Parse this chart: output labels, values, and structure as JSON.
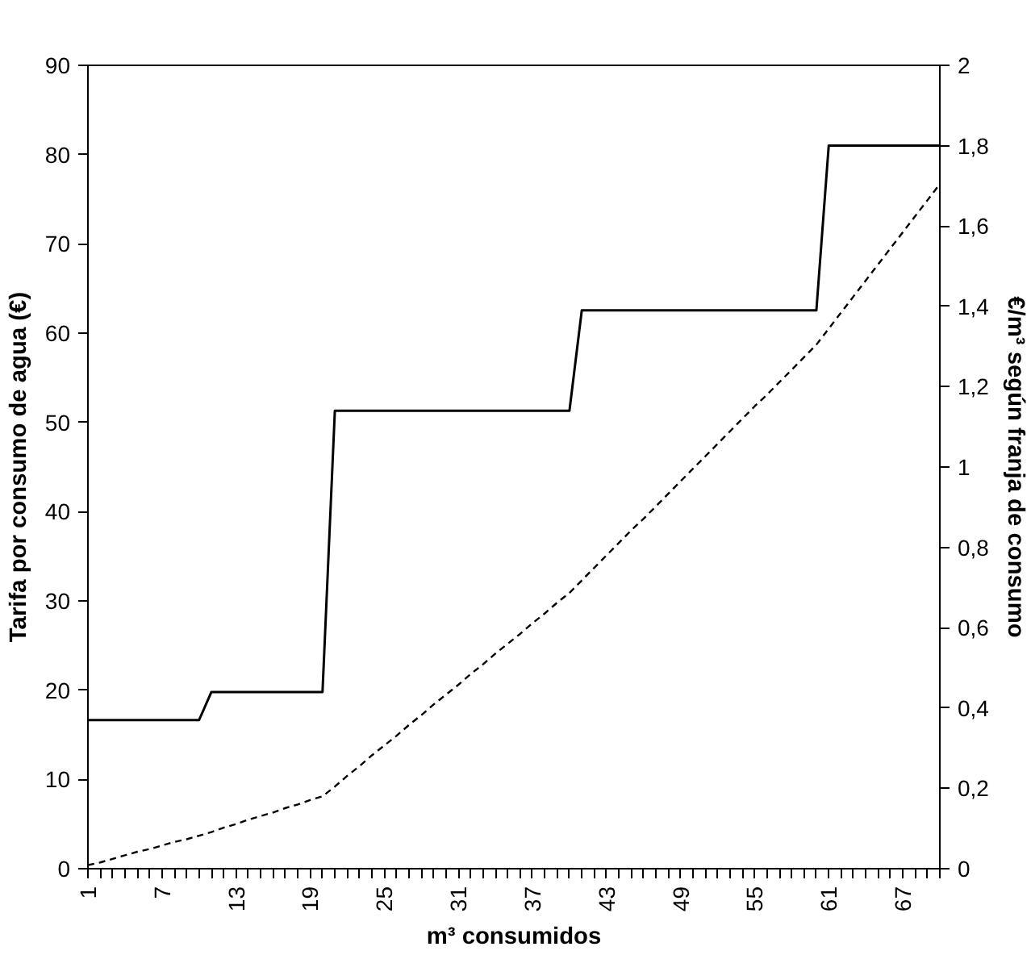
{
  "chart_data": {
    "type": "line",
    "xlabel": "m³ consumidos",
    "ylabel": "Tarifa por consumo de agua (€)",
    "y2label": "€/m³ según franja de consumo",
    "categories": [
      "1",
      null,
      null,
      null,
      null,
      null,
      "7",
      null,
      null,
      null,
      null,
      null,
      "13",
      null,
      null,
      null,
      null,
      null,
      "19",
      null,
      null,
      null,
      null,
      null,
      "25",
      null,
      null,
      null,
      null,
      null,
      "31",
      null,
      null,
      null,
      null,
      null,
      "37",
      null,
      null,
      null,
      null,
      null,
      "43",
      null,
      null,
      null,
      null,
      null,
      "49",
      null,
      null,
      null,
      null,
      null,
      "55",
      null,
      null,
      null,
      null,
      null,
      "61",
      null,
      null,
      null,
      null,
      null,
      "67",
      null,
      null,
      null
    ],
    "ylim": [
      0,
      90
    ],
    "yticks": [
      0,
      10,
      20,
      30,
      40,
      50,
      60,
      70,
      80,
      90
    ],
    "y2lim": [
      0,
      2
    ],
    "y2ticks": [
      0,
      {
        "value": 0.2,
        "label": "0,2"
      },
      {
        "value": 0.4,
        "label": "0,4"
      },
      {
        "value": 0.6,
        "label": "0,6"
      },
      {
        "value": 0.8,
        "label": "0,8"
      },
      1,
      {
        "value": 1.2,
        "label": "1,2"
      },
      {
        "value": 1.4,
        "label": "1,4"
      },
      {
        "value": 1.6,
        "label": "1,6"
      },
      {
        "value": 1.8,
        "label": "1,8"
      },
      2
    ],
    "grid": false,
    "marker": "none",
    "series": [
      {
        "color": "#000000",
        "line_style": "dashed",
        "values": [
          0.4,
          0.7,
          1.1,
          1.5,
          1.9,
          2.2,
          2.6,
          3.0,
          3.3,
          3.7,
          4.1,
          4.6,
          5.0,
          5.5,
          5.9,
          6.3,
          6.8,
          7.2,
          7.7,
          8.1,
          9.2,
          10.4,
          11.5,
          12.7,
          13.8,
          14.9,
          16.1,
          17.2,
          18.4,
          19.5,
          20.6,
          21.8,
          22.9,
          24.1,
          25.2,
          26.3,
          27.5,
          28.6,
          29.8,
          30.9,
          32.3,
          33.7,
          35.1,
          36.5,
          37.9,
          39.2,
          40.6,
          42.0,
          43.4,
          44.8,
          46.2,
          47.6,
          49.0,
          50.4,
          51.8,
          53.1,
          54.5,
          55.9,
          57.3,
          58.7,
          60.5,
          62.3,
          64.1,
          65.9,
          67.7,
          69.5,
          71.3,
          73.1,
          74.9,
          76.7
        ]
      },
      {
        "color": "#000000",
        "line_style": "solid",
        "axis": "y2",
        "values": [
          0.37,
          0.37,
          0.37,
          0.37,
          0.37,
          0.37,
          0.37,
          0.37,
          0.37,
          0.37,
          0.44,
          0.44,
          0.44,
          0.44,
          0.44,
          0.44,
          0.44,
          0.44,
          0.44,
          0.44,
          1.14,
          1.14,
          1.14,
          1.14,
          1.14,
          1.14,
          1.14,
          1.14,
          1.14,
          1.14,
          1.14,
          1.14,
          1.14,
          1.14,
          1.14,
          1.14,
          1.14,
          1.14,
          1.14,
          1.14,
          1.39,
          1.39,
          1.39,
          1.39,
          1.39,
          1.39,
          1.39,
          1.39,
          1.39,
          1.39,
          1.39,
          1.39,
          1.39,
          1.39,
          1.39,
          1.39,
          1.39,
          1.39,
          1.39,
          1.39,
          1.8,
          1.8,
          1.8,
          1.8,
          1.8,
          1.8,
          1.8,
          1.8,
          1.8,
          1.8
        ]
      }
    ]
  }
}
